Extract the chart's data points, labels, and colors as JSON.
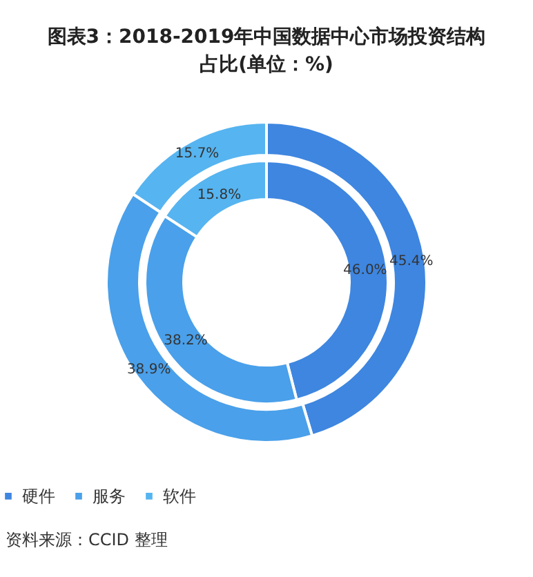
{
  "chart_data": {
    "type": "donut",
    "title": "图表3：2018-2019年中国数据中心市场投资结构占比(单位：%)",
    "categories": [
      "硬件",
      "服务",
      "软件"
    ],
    "colors": [
      "#3e86e0",
      "#4aa0ea",
      "#56b4f0"
    ],
    "series": [
      {
        "values": [
          46.0,
          38.2,
          15.8
        ],
        "value_labels": [
          "46.0%",
          "38.2%",
          "15.8%"
        ]
      },
      {
        "values": [
          45.4,
          38.9,
          15.7
        ],
        "value_labels": [
          "45.4%",
          "38.9%",
          "15.7%"
        ]
      }
    ],
    "legend": "bottom",
    "annotations": [
      "资料来源：CCID 整理"
    ]
  }
}
